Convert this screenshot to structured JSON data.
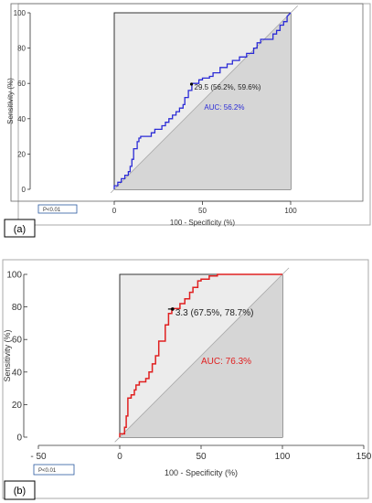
{
  "chart_data": [
    {
      "type": "line",
      "panel_label": "(a)",
      "xlabel": "100 - Specificity (%)",
      "ylabel": "Sensitivity (%)",
      "xlim": [
        0,
        100
      ],
      "ylim": [
        0,
        100
      ],
      "xticks": [
        0,
        50,
        100
      ],
      "yticks": [
        0,
        20,
        40,
        60,
        80,
        100
      ],
      "line_color": "#2b2bd6",
      "cutoff_point": {
        "x": 43.8,
        "y": 59.6,
        "label": "29.5 (56.2%, 59.6%)"
      },
      "auc_label": "AUC: 56.2%",
      "p_label": "P<0.01",
      "series": [
        {
          "x": [
            0,
            0,
            2,
            2,
            4,
            4,
            6,
            6,
            8,
            8,
            9,
            9,
            10,
            10,
            11,
            11,
            13,
            13,
            14,
            14,
            15,
            15,
            21,
            21,
            23,
            23,
            27,
            27,
            29,
            29,
            31,
            31,
            33,
            33,
            35,
            35,
            37,
            37,
            39,
            39,
            40,
            40,
            42,
            42,
            44,
            44,
            48,
            48,
            50,
            50,
            54,
            54,
            56,
            56,
            60,
            60,
            64,
            64,
            67,
            67,
            71,
            71,
            75,
            75,
            79,
            79,
            81,
            81,
            83,
            83,
            90,
            90,
            92,
            92,
            94,
            94,
            96,
            96,
            98,
            98,
            100
          ],
          "y": [
            0,
            2,
            2,
            4,
            4,
            6,
            6,
            8,
            8,
            10,
            10,
            13,
            13,
            17,
            17,
            23,
            23,
            27,
            27,
            29,
            29,
            30,
            30,
            32,
            32,
            34,
            34,
            36,
            36,
            38,
            38,
            40,
            40,
            42,
            42,
            44,
            44,
            46,
            46,
            48,
            48,
            52,
            52,
            56,
            56,
            60,
            60,
            62,
            62,
            63,
            63,
            64,
            64,
            66,
            66,
            69,
            69,
            71,
            71,
            73,
            73,
            75,
            75,
            77,
            77,
            80,
            80,
            83,
            83,
            85,
            85,
            88,
            88,
            90,
            90,
            93,
            93,
            95,
            95,
            98,
            100
          ]
        }
      ]
    },
    {
      "type": "line",
      "panel_label": "(b)",
      "xlabel": "100 - Specificity (%)",
      "ylabel": "Sensitivity (%)",
      "xlim": [
        -50,
        150
      ],
      "ylim": [
        0,
        100
      ],
      "xticks": [
        -50,
        0,
        50,
        100,
        150
      ],
      "xtick_labels": [
        "- 50",
        "0",
        "50",
        "100",
        "150"
      ],
      "yticks": [
        0,
        20,
        40,
        60,
        80,
        100
      ],
      "line_color": "#e02020",
      "cutoff_point": {
        "x": 32.5,
        "y": 78.7,
        "label": "3.3 (67.5%, 78.7%)"
      },
      "auc_label": "AUC: 76.3%",
      "p_label": "P<0.01",
      "series": [
        {
          "x": [
            0,
            0,
            3,
            3,
            4,
            4,
            5,
            5,
            7,
            7,
            9,
            9,
            10,
            10,
            12,
            12,
            16,
            16,
            18,
            18,
            20,
            20,
            22,
            22,
            24,
            24,
            28,
            28,
            30,
            30,
            32,
            32,
            37,
            37,
            40,
            40,
            43,
            43,
            45,
            45,
            48,
            48,
            50,
            50,
            55,
            55,
            60,
            60,
            100
          ],
          "y": [
            0,
            2,
            2,
            6,
            6,
            13,
            13,
            24,
            24,
            26,
            26,
            29,
            29,
            32,
            32,
            34,
            34,
            36,
            36,
            40,
            40,
            45,
            45,
            50,
            50,
            59,
            59,
            69,
            69,
            76,
            76,
            79,
            79,
            82,
            82,
            85,
            85,
            89,
            89,
            92,
            92,
            96,
            96,
            97,
            97,
            99,
            99,
            100,
            100
          ]
        }
      ]
    }
  ]
}
